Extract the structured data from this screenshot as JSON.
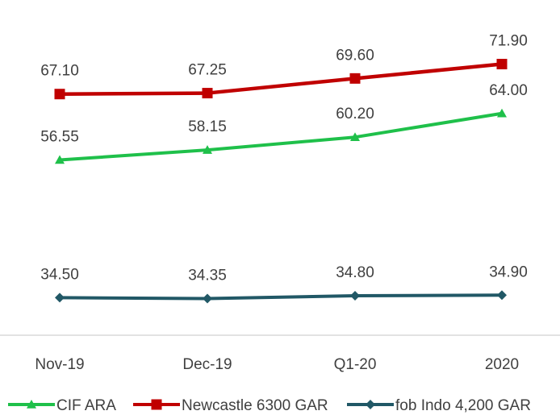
{
  "chart_data": {
    "type": "line",
    "categories": [
      "Nov-19",
      "Dec-19",
      "Q1-20",
      "2020"
    ],
    "series": [
      {
        "name": "CIF ARA",
        "values": [
          56.55,
          58.15,
          60.2,
          64.0
        ],
        "labels": [
          "56.55",
          "58.15",
          "60.20",
          "64.00"
        ],
        "color": "#1FC04A",
        "marker": "triangle"
      },
      {
        "name": "Newcastle 6300 GAR",
        "values": [
          67.1,
          67.25,
          69.6,
          71.9
        ],
        "labels": [
          "67.10",
          "67.25",
          "69.60",
          "71.90"
        ],
        "color": "#C00000",
        "marker": "square"
      },
      {
        "name": "fob Indo 4,200 GAR",
        "values": [
          34.5,
          34.35,
          34.8,
          34.9
        ],
        "labels": [
          "34.50",
          "34.35",
          "34.80",
          "34.90"
        ],
        "color": "#215866",
        "marker": "diamond"
      }
    ],
    "ylim": [
      29,
      77
    ],
    "grid": false,
    "legend_position": "bottom",
    "axis_color": "#D9D9D9"
  }
}
